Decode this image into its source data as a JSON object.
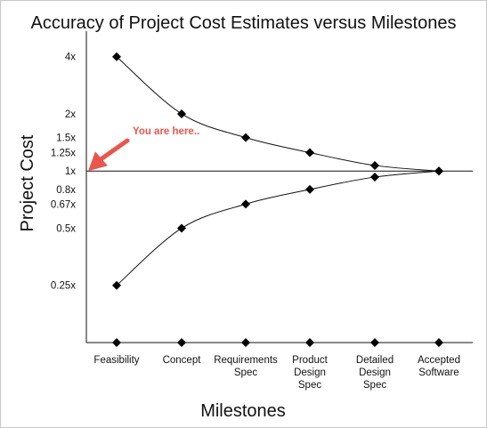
{
  "chart_data": {
    "type": "line",
    "title": "Accuracy of Project Cost Estimates versus Milestones",
    "xlabel": "Milestones",
    "ylabel": "Project Cost",
    "y_scale": "log",
    "ylim": [
      0.125,
      5
    ],
    "categories": [
      "Feasibility",
      "Concept",
      "Requirements Spec",
      "Product Design Spec",
      "Detailed Design Spec",
      "Accepted Software"
    ],
    "category_lines": [
      [
        "Feasibility"
      ],
      [
        "Concept"
      ],
      [
        "Requirements",
        "Spec"
      ],
      [
        "Product",
        "Design",
        "Spec"
      ],
      [
        "Detailed",
        "Design",
        "Spec"
      ],
      [
        "Accepted",
        "Software"
      ]
    ],
    "y_ticks": [
      {
        "value": 4,
        "label": "4x"
      },
      {
        "value": 2,
        "label": "2x"
      },
      {
        "value": 1.5,
        "label": "1.5x"
      },
      {
        "value": 1.25,
        "label": "1.25x"
      },
      {
        "value": 1,
        "label": "1x"
      },
      {
        "value": 0.8,
        "label": "0.8x"
      },
      {
        "value": 0.67,
        "label": "0.67x"
      },
      {
        "value": 0.5,
        "label": "0.5x"
      },
      {
        "value": 0.25,
        "label": "0.25x"
      }
    ],
    "series": [
      {
        "values": [
          4,
          2,
          1.5,
          1.25,
          1.07,
          1
        ]
      },
      {
        "values": [
          0.25,
          0.5,
          0.67,
          0.8,
          0.93,
          1
        ]
      }
    ],
    "baseline_markers": [
      1,
      1,
      1,
      1,
      1,
      1
    ],
    "reference_line": 1,
    "annotation": {
      "text": "You are here..",
      "points_to": {
        "x": "Feasibility",
        "y": 1
      }
    },
    "grid": false,
    "colors": {
      "line": "#111111",
      "marker": "#000000",
      "annotation": "#e8574f"
    }
  }
}
